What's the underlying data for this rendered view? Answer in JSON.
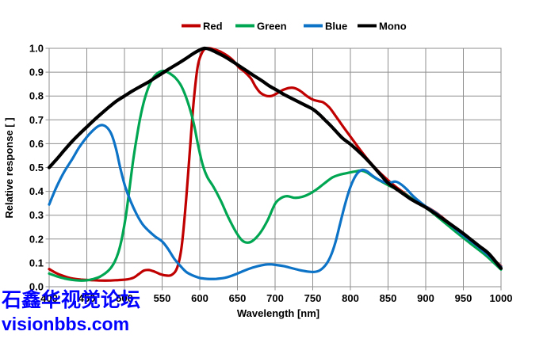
{
  "watermark": {
    "line1": "石鑫华视觉论坛",
    "line2": "visionbbs.com",
    "color": "#0202fe"
  },
  "colors": {
    "grid": "#8f8f8f",
    "background": "#ffffff",
    "text": "#000000"
  },
  "chart_data": {
    "type": "line",
    "title": "",
    "xlabel": "Wavelength [nm]",
    "ylabel": "Relative response [ ]",
    "xlim": [
      400,
      1000
    ],
    "ylim": [
      0.0,
      1.0
    ],
    "grid": true,
    "legend_position": "top-center",
    "x_ticks": [
      400,
      450,
      500,
      550,
      600,
      650,
      700,
      750,
      800,
      850,
      900,
      950,
      1000
    ],
    "y_ticks": [
      "0.0",
      "0.1",
      "0.2",
      "0.3",
      "0.4",
      "0.5",
      "0.6",
      "0.7",
      "0.8",
      "0.9",
      "1.0"
    ],
    "series": [
      {
        "name": "Red",
        "color": "#c00000",
        "width": 3.2,
        "points": [
          [
            400,
            0.074
          ],
          [
            410,
            0.056
          ],
          [
            420,
            0.044
          ],
          [
            430,
            0.035
          ],
          [
            442,
            0.03
          ],
          [
            455,
            0.028
          ],
          [
            468,
            0.026
          ],
          [
            480,
            0.026
          ],
          [
            492,
            0.028
          ],
          [
            504,
            0.031
          ],
          [
            512,
            0.038
          ],
          [
            519,
            0.053
          ],
          [
            526,
            0.068
          ],
          [
            533,
            0.07
          ],
          [
            540,
            0.063
          ],
          [
            548,
            0.052
          ],
          [
            556,
            0.047
          ],
          [
            563,
            0.05
          ],
          [
            570,
            0.08
          ],
          [
            576,
            0.17
          ],
          [
            582,
            0.37
          ],
          [
            587,
            0.58
          ],
          [
            592,
            0.78
          ],
          [
            597,
            0.92
          ],
          [
            602,
            0.975
          ],
          [
            607,
            0.998
          ],
          [
            613,
            1.0
          ],
          [
            620,
            0.995
          ],
          [
            628,
            0.985
          ],
          [
            636,
            0.97
          ],
          [
            644,
            0.95
          ],
          [
            652,
            0.92
          ],
          [
            660,
            0.9
          ],
          [
            668,
            0.873
          ],
          [
            674,
            0.84
          ],
          [
            680,
            0.815
          ],
          [
            687,
            0.802
          ],
          [
            695,
            0.8
          ],
          [
            703,
            0.812
          ],
          [
            711,
            0.826
          ],
          [
            719,
            0.834
          ],
          [
            726,
            0.833
          ],
          [
            734,
            0.82
          ],
          [
            742,
            0.8
          ],
          [
            750,
            0.785
          ],
          [
            758,
            0.778
          ],
          [
            764,
            0.773
          ],
          [
            772,
            0.752
          ],
          [
            780,
            0.718
          ],
          [
            790,
            0.673
          ],
          [
            800,
            0.63
          ],
          [
            812,
            0.578
          ],
          [
            824,
            0.53
          ],
          [
            836,
            0.488
          ],
          [
            848,
            0.452
          ],
          [
            860,
            0.42
          ],
          [
            872,
            0.392
          ],
          [
            885,
            0.363
          ],
          [
            900,
            0.337
          ],
          [
            915,
            0.308
          ],
          [
            930,
            0.27
          ],
          [
            950,
            0.218
          ],
          [
            970,
            0.168
          ],
          [
            985,
            0.128
          ],
          [
            1000,
            0.086
          ]
        ]
      },
      {
        "name": "Green",
        "color": "#00a651",
        "width": 3.2,
        "points": [
          [
            400,
            0.055
          ],
          [
            410,
            0.044
          ],
          [
            420,
            0.035
          ],
          [
            430,
            0.029
          ],
          [
            440,
            0.026
          ],
          [
            450,
            0.027
          ],
          [
            458,
            0.032
          ],
          [
            466,
            0.04
          ],
          [
            474,
            0.055
          ],
          [
            481,
            0.075
          ],
          [
            487,
            0.105
          ],
          [
            492,
            0.145
          ],
          [
            497,
            0.21
          ],
          [
            502,
            0.3
          ],
          [
            507,
            0.42
          ],
          [
            512,
            0.54
          ],
          [
            517,
            0.64
          ],
          [
            522,
            0.725
          ],
          [
            527,
            0.79
          ],
          [
            533,
            0.845
          ],
          [
            539,
            0.88
          ],
          [
            546,
            0.9
          ],
          [
            553,
            0.905
          ],
          [
            560,
            0.895
          ],
          [
            567,
            0.878
          ],
          [
            574,
            0.85
          ],
          [
            580,
            0.81
          ],
          [
            586,
            0.755
          ],
          [
            592,
            0.685
          ],
          [
            598,
            0.59
          ],
          [
            604,
            0.51
          ],
          [
            610,
            0.46
          ],
          [
            618,
            0.42
          ],
          [
            628,
            0.36
          ],
          [
            638,
            0.29
          ],
          [
            648,
            0.23
          ],
          [
            656,
            0.195
          ],
          [
            663,
            0.185
          ],
          [
            670,
            0.192
          ],
          [
            680,
            0.225
          ],
          [
            690,
            0.278
          ],
          [
            700,
            0.348
          ],
          [
            708,
            0.372
          ],
          [
            716,
            0.38
          ],
          [
            726,
            0.373
          ],
          [
            736,
            0.377
          ],
          [
            746,
            0.39
          ],
          [
            756,
            0.41
          ],
          [
            766,
            0.435
          ],
          [
            776,
            0.458
          ],
          [
            786,
            0.47
          ],
          [
            796,
            0.477
          ],
          [
            806,
            0.483
          ],
          [
            814,
            0.487
          ],
          [
            822,
            0.479
          ],
          [
            832,
            0.458
          ],
          [
            842,
            0.44
          ],
          [
            852,
            0.423
          ],
          [
            865,
            0.403
          ],
          [
            880,
            0.373
          ],
          [
            900,
            0.332
          ],
          [
            920,
            0.282
          ],
          [
            940,
            0.23
          ],
          [
            960,
            0.18
          ],
          [
            980,
            0.131
          ],
          [
            1000,
            0.072
          ]
        ]
      },
      {
        "name": "Blue",
        "color": "#0d73c6",
        "width": 3.2,
        "points": [
          [
            400,
            0.345
          ],
          [
            410,
            0.42
          ],
          [
            420,
            0.482
          ],
          [
            430,
            0.532
          ],
          [
            440,
            0.585
          ],
          [
            450,
            0.628
          ],
          [
            458,
            0.655
          ],
          [
            465,
            0.673
          ],
          [
            471,
            0.678
          ],
          [
            477,
            0.667
          ],
          [
            483,
            0.638
          ],
          [
            489,
            0.575
          ],
          [
            495,
            0.49
          ],
          [
            501,
            0.42
          ],
          [
            508,
            0.36
          ],
          [
            516,
            0.305
          ],
          [
            524,
            0.262
          ],
          [
            532,
            0.235
          ],
          [
            541,
            0.21
          ],
          [
            550,
            0.19
          ],
          [
            558,
            0.158
          ],
          [
            566,
            0.118
          ],
          [
            574,
            0.088
          ],
          [
            582,
            0.062
          ],
          [
            591,
            0.047
          ],
          [
            600,
            0.037
          ],
          [
            610,
            0.033
          ],
          [
            622,
            0.033
          ],
          [
            634,
            0.038
          ],
          [
            646,
            0.05
          ],
          [
            658,
            0.066
          ],
          [
            670,
            0.08
          ],
          [
            682,
            0.09
          ],
          [
            692,
            0.094
          ],
          [
            702,
            0.091
          ],
          [
            712,
            0.086
          ],
          [
            722,
            0.078
          ],
          [
            732,
            0.07
          ],
          [
            742,
            0.064
          ],
          [
            752,
            0.062
          ],
          [
            760,
            0.07
          ],
          [
            768,
            0.095
          ],
          [
            774,
            0.13
          ],
          [
            780,
            0.185
          ],
          [
            786,
            0.26
          ],
          [
            792,
            0.335
          ],
          [
            798,
            0.4
          ],
          [
            804,
            0.448
          ],
          [
            810,
            0.478
          ],
          [
            816,
            0.49
          ],
          [
            822,
            0.484
          ],
          [
            830,
            0.464
          ],
          [
            838,
            0.448
          ],
          [
            846,
            0.438
          ],
          [
            853,
            0.437
          ],
          [
            860,
            0.441
          ],
          [
            867,
            0.43
          ],
          [
            875,
            0.408
          ],
          [
            885,
            0.375
          ],
          [
            900,
            0.337
          ],
          [
            915,
            0.306
          ],
          [
            930,
            0.267
          ],
          [
            950,
            0.215
          ],
          [
            970,
            0.167
          ],
          [
            985,
            0.127
          ],
          [
            1000,
            0.083
          ]
        ]
      },
      {
        "name": "Mono",
        "color": "#000000",
        "width": 4.2,
        "points": [
          [
            400,
            0.5
          ],
          [
            410,
            0.535
          ],
          [
            420,
            0.572
          ],
          [
            430,
            0.608
          ],
          [
            440,
            0.64
          ],
          [
            450,
            0.67
          ],
          [
            460,
            0.7
          ],
          [
            470,
            0.728
          ],
          [
            480,
            0.755
          ],
          [
            490,
            0.78
          ],
          [
            500,
            0.8
          ],
          [
            510,
            0.82
          ],
          [
            520,
            0.838
          ],
          [
            530,
            0.855
          ],
          [
            540,
            0.875
          ],
          [
            550,
            0.895
          ],
          [
            560,
            0.915
          ],
          [
            572,
            0.938
          ],
          [
            582,
            0.958
          ],
          [
            590,
            0.975
          ],
          [
            598,
            0.99
          ],
          [
            606,
            1.0
          ],
          [
            614,
            0.995
          ],
          [
            622,
            0.983
          ],
          [
            632,
            0.967
          ],
          [
            642,
            0.948
          ],
          [
            652,
            0.927
          ],
          [
            662,
            0.906
          ],
          [
            672,
            0.885
          ],
          [
            682,
            0.865
          ],
          [
            692,
            0.843
          ],
          [
            702,
            0.825
          ],
          [
            712,
            0.806
          ],
          [
            722,
            0.79
          ],
          [
            732,
            0.774
          ],
          [
            742,
            0.758
          ],
          [
            750,
            0.745
          ],
          [
            758,
            0.725
          ],
          [
            766,
            0.7
          ],
          [
            774,
            0.675
          ],
          [
            782,
            0.648
          ],
          [
            790,
            0.622
          ],
          [
            800,
            0.598
          ],
          [
            810,
            0.57
          ],
          [
            820,
            0.54
          ],
          [
            830,
            0.506
          ],
          [
            840,
            0.47
          ],
          [
            850,
            0.435
          ],
          [
            860,
            0.412
          ],
          [
            870,
            0.39
          ],
          [
            880,
            0.368
          ],
          [
            890,
            0.35
          ],
          [
            900,
            0.333
          ],
          [
            912,
            0.308
          ],
          [
            924,
            0.282
          ],
          [
            936,
            0.255
          ],
          [
            948,
            0.228
          ],
          [
            960,
            0.198
          ],
          [
            972,
            0.168
          ],
          [
            984,
            0.138
          ],
          [
            1000,
            0.077
          ]
        ]
      }
    ]
  }
}
